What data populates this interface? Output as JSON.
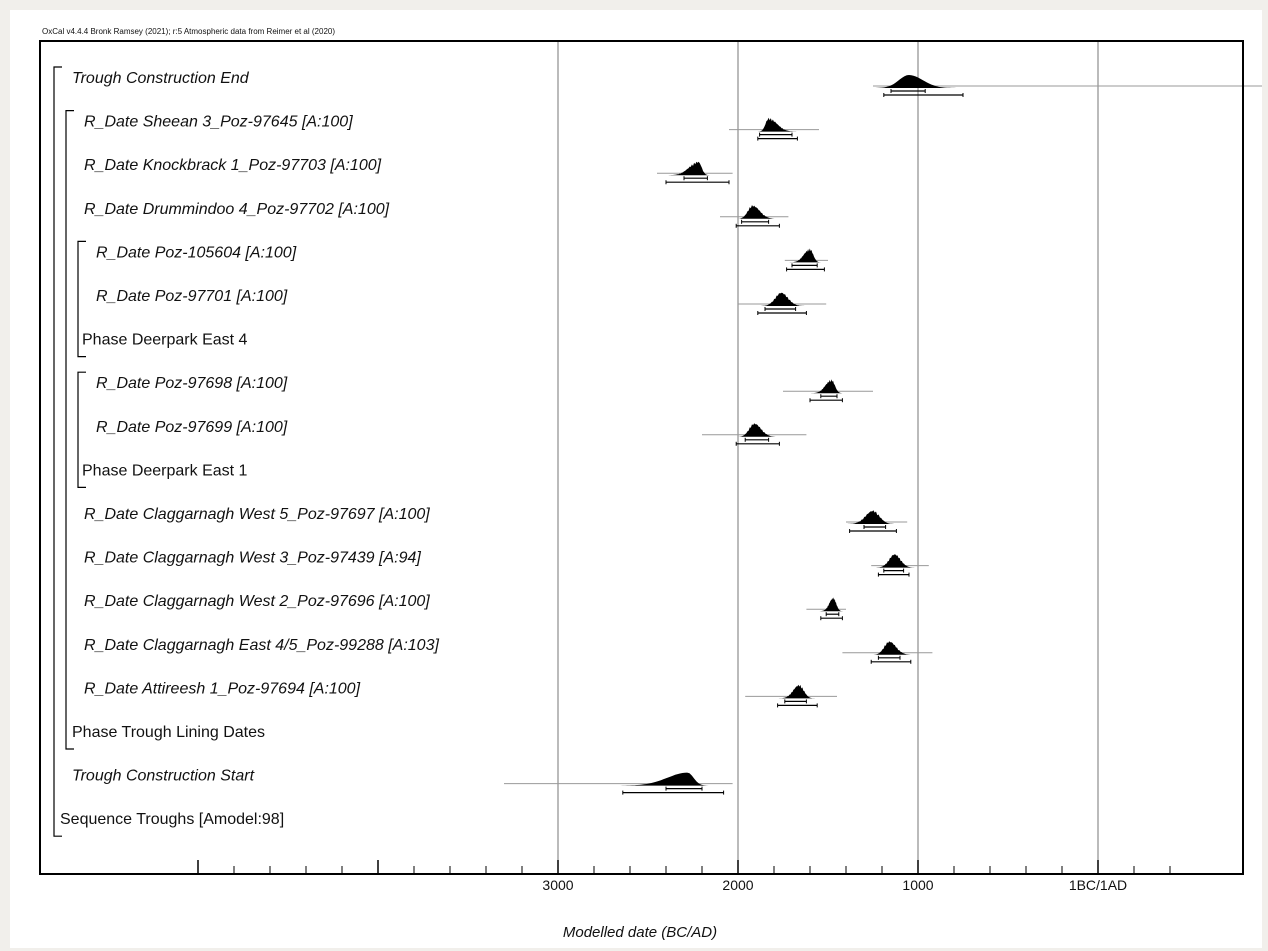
{
  "chart_data": {
    "type": "oxcal-multiplot",
    "header": "OxCal v4.4.4 Bronk Ramsey (2021); r:5 Atmospheric data from Reimer et al (2020)",
    "xlabel": "Modelled date (BC/AD)",
    "x_unit": "BC/AD",
    "xlim": [
      -5100,
      450
    ],
    "x_direction": "BC increasing to the left",
    "tick_labels": [
      {
        "value": -3000,
        "label": "3000"
      },
      {
        "value": -2000,
        "label": "2000"
      },
      {
        "value": -1000,
        "label": "1000"
      },
      {
        "value": 0,
        "label": "1BC/1AD"
      }
    ],
    "major_gridlines": [
      -3000,
      -2000,
      -1000,
      0
    ],
    "minor_ticks_every": 200,
    "rows": [
      {
        "label": "Trough Construction End",
        "kind": "boundary",
        "italic": true,
        "peak": -1050,
        "min": -1250,
        "max": -750,
        "line": [
          -1250,
          1550
        ],
        "range95": [
          -1190,
          -750
        ],
        "range68": [
          -1150,
          -960
        ]
      },
      {
        "label": "R_Date Sheean 3_Poz-97645 [A:100]",
        "kind": "rdate",
        "italic": true,
        "peak": -1830,
        "min": -1890,
        "max": -1650,
        "line": [
          -2050,
          -1550
        ],
        "range95": [
          -1890,
          -1670
        ],
        "range68": [
          -1880,
          -1700
        ]
      },
      {
        "label": "R_Date Knockbrack 1_Poz-97703 [A:100]",
        "kind": "rdate",
        "italic": true,
        "peak": -2220,
        "min": -2400,
        "max": -2150,
        "line": [
          -2450,
          -2030
        ],
        "range95": [
          -2400,
          -2050
        ],
        "range68": [
          -2300,
          -2170
        ]
      },
      {
        "label": "R_Date Drummindoo 4_Poz-97702 [A:100]",
        "kind": "rdate",
        "italic": true,
        "peak": -1920,
        "min": -2010,
        "max": -1760,
        "line": [
          -2100,
          -1720
        ],
        "range95": [
          -2010,
          -1770
        ],
        "range68": [
          -1980,
          -1830
        ]
      },
      {
        "label": "R_Date Poz-105604 [A:100]",
        "kind": "rdate",
        "italic": true,
        "peak": -1600,
        "min": -1720,
        "max": -1530,
        "line": [
          -1740,
          -1500
        ],
        "range95": [
          -1730,
          -1520
        ],
        "range68": [
          -1700,
          -1560
        ]
      },
      {
        "label": "R_Date Poz-97701 [A:100]",
        "kind": "rdate",
        "italic": true,
        "peak": -1760,
        "min": -1880,
        "max": -1610,
        "line": [
          -2000,
          -1510
        ],
        "range95": [
          -1890,
          -1620
        ],
        "range68": [
          -1850,
          -1680
        ]
      },
      {
        "label": "Phase Deerpark East 4",
        "kind": "phase",
        "italic": false
      },
      {
        "label": "R_Date Poz-97698 [A:100]",
        "kind": "rdate",
        "italic": true,
        "peak": -1480,
        "min": -1600,
        "max": -1410,
        "line": [
          -1750,
          -1250
        ],
        "range95": [
          -1600,
          -1420
        ],
        "range68": [
          -1540,
          -1450
        ]
      },
      {
        "label": "R_Date Poz-97699 [A:100]",
        "kind": "rdate",
        "italic": true,
        "peak": -1910,
        "min": -2010,
        "max": -1760,
        "line": [
          -2200,
          -1620
        ],
        "range95": [
          -2010,
          -1770
        ],
        "range68": [
          -1960,
          -1830
        ]
      },
      {
        "label": "Phase Deerpark East 1",
        "kind": "phase",
        "italic": false
      },
      {
        "label": "R_Date Claggarnagh West 5_Poz-97697 [A:100]",
        "kind": "rdate",
        "italic": true,
        "peak": -1250,
        "min": -1400,
        "max": -1110,
        "line": [
          -1400,
          -1060
        ],
        "range95": [
          -1380,
          -1120
        ],
        "range68": [
          -1300,
          -1180
        ]
      },
      {
        "label": "R_Date Claggarnagh West 3_Poz-97439 [A:94]",
        "kind": "rdate",
        "italic": true,
        "peak": -1130,
        "min": -1240,
        "max": -1000,
        "line": [
          -1260,
          -940
        ],
        "range95": [
          -1220,
          -1050
        ],
        "range68": [
          -1190,
          -1080
        ]
      },
      {
        "label": "R_Date Claggarnagh West 2_Poz-97696 [A:100]",
        "kind": "rdate",
        "italic": true,
        "peak": -1470,
        "min": -1550,
        "max": -1410,
        "line": [
          -1620,
          -1400
        ],
        "range95": [
          -1540,
          -1420
        ],
        "range68": [
          -1510,
          -1440
        ]
      },
      {
        "label": "R_Date Claggarnagh East 4/5_Poz-99288 [A:103]",
        "kind": "rdate",
        "italic": true,
        "peak": -1160,
        "min": -1260,
        "max": -1010,
        "line": [
          -1420,
          -920
        ],
        "range95": [
          -1260,
          -1040
        ],
        "range68": [
          -1220,
          -1100
        ]
      },
      {
        "label": "R_Date Attireesh 1_Poz-97694 [A:100]",
        "kind": "rdate",
        "italic": true,
        "peak": -1660,
        "min": -1780,
        "max": -1560,
        "line": [
          -1960,
          -1450
        ],
        "range95": [
          -1780,
          -1560
        ],
        "range68": [
          -1740,
          -1620
        ]
      },
      {
        "label": "Phase Trough Lining Dates",
        "kind": "phase",
        "italic": false
      },
      {
        "label": "Trough Construction Start",
        "kind": "boundary",
        "italic": true,
        "peak": -2280,
        "min": -2680,
        "max": -2150,
        "line": [
          -3300,
          -2030
        ],
        "range95": [
          -2640,
          -2080
        ],
        "range68": [
          -2400,
          -2200
        ]
      },
      {
        "label": "Sequence Troughs [Amodel:98]",
        "kind": "sequence",
        "italic": false
      }
    ],
    "brackets": [
      {
        "name": "sequence",
        "from_row": 0,
        "to_row": 17
      },
      {
        "name": "trough-lining-phase",
        "from_row": 1,
        "to_row": 15
      },
      {
        "name": "deerpark-east-4-phase",
        "from_row": 4,
        "to_row": 6
      },
      {
        "name": "deerpark-east-1-phase",
        "from_row": 7,
        "to_row": 9
      }
    ],
    "colors": {
      "distribution": "#000000",
      "range_line": "#999999",
      "gridline": "#777777",
      "frame": "#000000"
    }
  }
}
